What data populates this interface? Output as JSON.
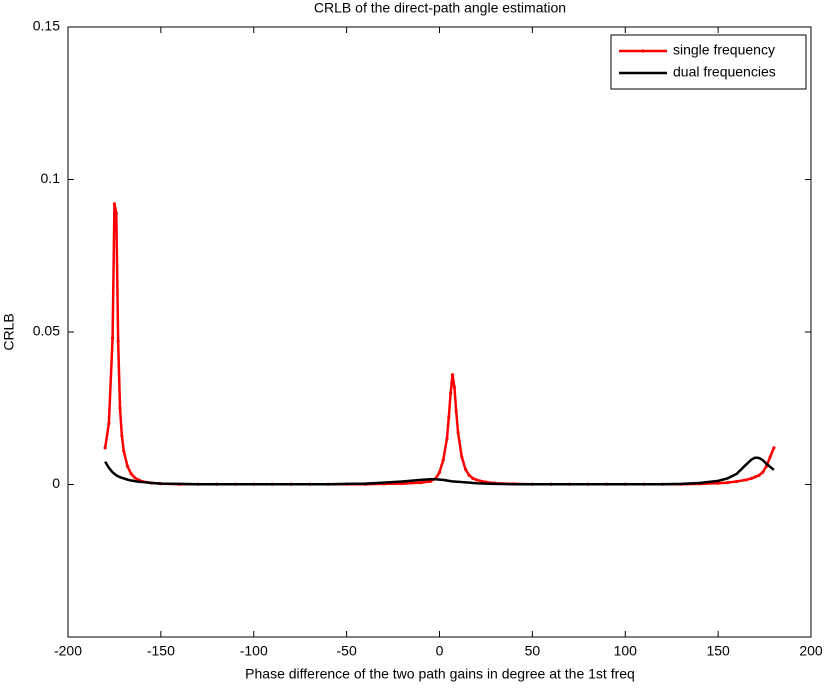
{
  "chart_data": {
    "type": "line",
    "title": "CRLB of the direct-path angle estimation",
    "x_label": "Phase difference of the two path gains in degree at the 1st freq",
    "y_label": "CRLB",
    "x": [
      -180,
      -178,
      -176,
      -175,
      -174,
      -173,
      -172,
      -171,
      -170,
      -168,
      -166,
      -164,
      -162,
      -160,
      -155,
      -150,
      -140,
      -130,
      -120,
      -110,
      -100,
      -90,
      -80,
      -70,
      -60,
      -50,
      -40,
      -30,
      -20,
      -10,
      -5,
      -2,
      0,
      2,
      4,
      5,
      6,
      7,
      8,
      9,
      10,
      12,
      14,
      16,
      18,
      20,
      25,
      30,
      40,
      50,
      60,
      70,
      80,
      90,
      100,
      110,
      120,
      130,
      140,
      150,
      155,
      160,
      165,
      168,
      170,
      172,
      174,
      176,
      178,
      180
    ],
    "series": [
      {
        "name": "single frequency",
        "color": "#ff0000",
        "markers": true,
        "values": [
          0.012,
          0.02,
          0.048,
          0.092,
          0.089,
          0.047,
          0.025,
          0.016,
          0.011,
          0.006,
          0.0035,
          0.0022,
          0.0015,
          0.001,
          0.0005,
          0.0003,
          0.0001,
          0.0001,
          0.0001,
          0.0001,
          0.0001,
          0.0001,
          0.0001,
          0.0001,
          0.0001,
          0.0001,
          0.0001,
          0.0002,
          0.0003,
          0.0006,
          0.001,
          0.002,
          0.004,
          0.008,
          0.015,
          0.022,
          0.03,
          0.036,
          0.032,
          0.024,
          0.017,
          0.009,
          0.005,
          0.003,
          0.002,
          0.0015,
          0.0008,
          0.0004,
          0.0002,
          0.0001,
          0.0001,
          0.0001,
          0.0001,
          0.0001,
          0.0001,
          0.0001,
          0.0001,
          0.0001,
          0.0002,
          0.0004,
          0.0006,
          0.001,
          0.0015,
          0.002,
          0.0025,
          0.003,
          0.004,
          0.006,
          0.009,
          0.012
        ]
      },
      {
        "name": "dual frequencies",
        "color": "#000000",
        "markers": false,
        "values": [
          0.0075,
          0.0055,
          0.004,
          0.0035,
          0.003,
          0.0027,
          0.0024,
          0.0022,
          0.002,
          0.0016,
          0.0013,
          0.0011,
          0.0009,
          0.0008,
          0.0005,
          0.0003,
          0.0002,
          0.0001,
          0.0001,
          0.0001,
          0.0001,
          0.0001,
          0.0001,
          0.0001,
          0.0001,
          0.0002,
          0.0003,
          0.0006,
          0.001,
          0.0015,
          0.0017,
          0.0017,
          0.0016,
          0.0015,
          0.0013,
          0.0012,
          0.0011,
          0.001,
          0.001,
          0.0009,
          0.0009,
          0.0008,
          0.0007,
          0.0006,
          0.0005,
          0.0004,
          0.0003,
          0.0002,
          0.0001,
          0.0001,
          0.0001,
          0.0001,
          0.0001,
          0.0001,
          0.0001,
          0.0001,
          0.0001,
          0.0002,
          0.0005,
          0.0012,
          0.002,
          0.0035,
          0.0065,
          0.0082,
          0.0088,
          0.0087,
          0.008,
          0.0068,
          0.0058,
          0.0048
        ]
      }
    ],
    "xlim": [
      -200,
      200
    ],
    "xticks": [
      -200,
      -150,
      -100,
      -50,
      0,
      50,
      100,
      150,
      200
    ],
    "ylim": [
      -0.05,
      0.15
    ],
    "yticks": [
      0,
      0.05,
      0.1,
      0.15
    ],
    "legend": "top-right"
  }
}
